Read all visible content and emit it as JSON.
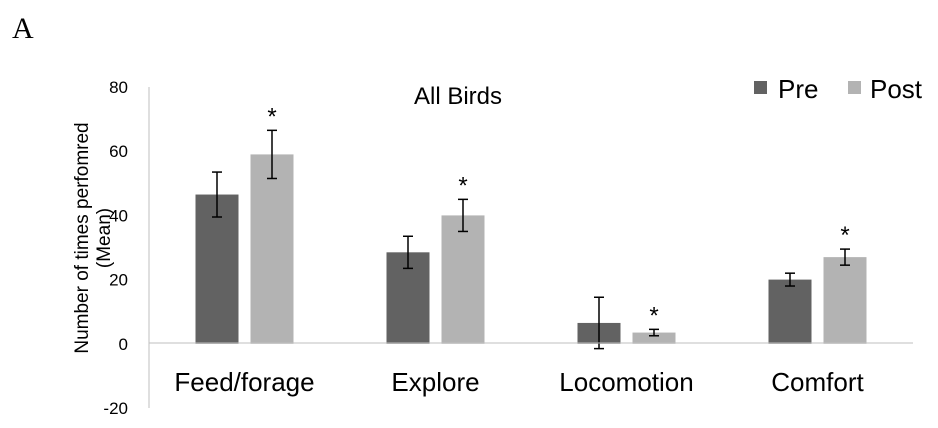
{
  "panel_label": "A",
  "chart_data": {
    "type": "bar",
    "title": "All Birds",
    "categories": [
      "Feed/forage",
      "Explore",
      "Locomotion",
      "Comfort"
    ],
    "series": [
      {
        "name": "Pre",
        "values": [
          46.5,
          28.5,
          6.5,
          20
        ],
        "error": [
          7,
          5,
          8,
          2
        ],
        "color": "#626262"
      },
      {
        "name": "Post",
        "values": [
          59,
          40,
          3.5,
          27
        ],
        "error": [
          7.5,
          5,
          1,
          2.5
        ],
        "color": "#b3b3b3"
      }
    ],
    "significance": [
      {
        "category": "Feed/forage",
        "series": "Post",
        "label": "*"
      },
      {
        "category": "Explore",
        "series": "Post",
        "label": "*"
      },
      {
        "category": "Locomotion",
        "series": "Post",
        "label": "*"
      },
      {
        "category": "Comfort",
        "series": "Post",
        "label": "*"
      }
    ],
    "xlabel": "",
    "ylabel_lines": [
      "Number of times perfomred",
      "(Mean)"
    ],
    "ylim": [
      -20,
      80
    ],
    "yticks": [
      80,
      60,
      40,
      20,
      0,
      -20
    ],
    "legend": "top-right",
    "grid": false
  }
}
